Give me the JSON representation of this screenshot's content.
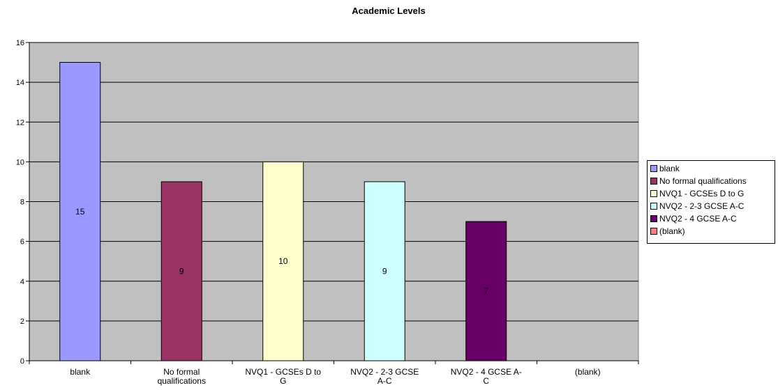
{
  "chart_data": {
    "type": "bar",
    "title": "Academic Levels",
    "categories": [
      "blank",
      "No formal qualifications",
      "NVQ1 - GCSEs D to G",
      "NVQ2 - 2-3 GCSE A-C",
      "NVQ2 - 4 GCSE A-C",
      "(blank)"
    ],
    "category_tick_labels": [
      [
        "blank"
      ],
      [
        "No formal",
        "qualifications"
      ],
      [
        "NVQ1 - GCSEs D to",
        "G"
      ],
      [
        "NVQ2 - 2-3 GCSE",
        "A-C"
      ],
      [
        "NVQ2 - 4 GCSE A-",
        "C"
      ],
      [
        "(blank)"
      ]
    ],
    "values": [
      15,
      9,
      10,
      9,
      7,
      null
    ],
    "data_labels": [
      "15",
      "9",
      "10",
      "9",
      "7",
      ""
    ],
    "colors": [
      "#9999ff",
      "#993366",
      "#ffffcc",
      "#ccffff",
      "#660066",
      "#ff8080"
    ],
    "ylim": [
      0,
      16
    ],
    "yticks": [
      0,
      2,
      4,
      6,
      8,
      10,
      12,
      14,
      16
    ],
    "grid": true,
    "plot_background": "#c0c0c0",
    "legend_position": "right",
    "legend": [
      "blank",
      "No formal qualifications",
      "NVQ1 - GCSEs D to G",
      "NVQ2 - 2-3 GCSE A-C",
      "NVQ2 - 4 GCSE A-C",
      "(blank)"
    ]
  }
}
